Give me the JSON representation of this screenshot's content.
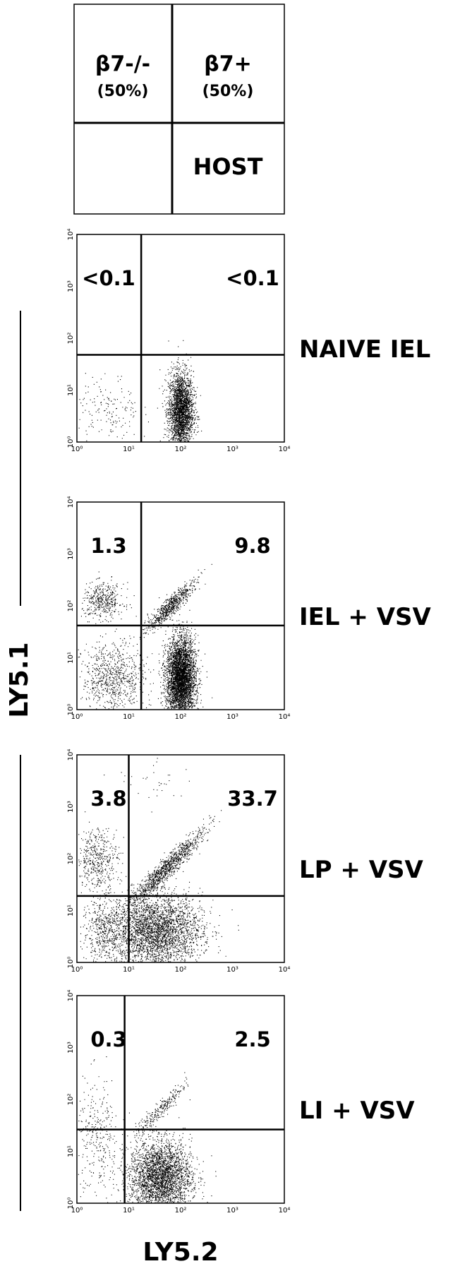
{
  "key": {
    "top_left": "β7-/-",
    "top_left_pct": "(50%)",
    "top_right": "β7+",
    "top_right_pct": "(50%)",
    "bottom_right": "HOST"
  },
  "axis_ticks": [
    "10⁰",
    "10¹",
    "10²",
    "10³",
    "10⁴"
  ],
  "y_axis_label": "LY5.1",
  "x_axis_label": "LY5.2",
  "panels": [
    {
      "label": "NAIVE IEL",
      "upper_left": "<0.1",
      "upper_right": "<0.1"
    },
    {
      "label": "IEL + VSV",
      "upper_left": "1.3",
      "upper_right": "9.8"
    },
    {
      "label": "LP + VSV",
      "upper_left": "3.8",
      "upper_right": "33.7"
    },
    {
      "label": "LI + VSV",
      "upper_left": "0.3",
      "upper_right": "2.5"
    }
  ]
}
